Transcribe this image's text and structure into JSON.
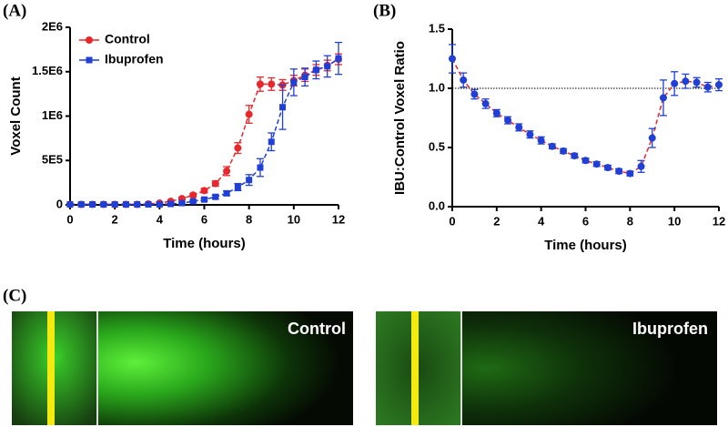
{
  "chart_data": [
    {
      "type": "line",
      "panel_label": "(A)",
      "x_label": "Time (hours)",
      "y_label": "Voxel Count",
      "x": [
        0,
        0.5,
        1,
        1.5,
        2,
        2.5,
        3,
        3.5,
        4,
        4.5,
        5,
        5.5,
        6,
        6.5,
        7,
        7.5,
        8,
        8.5,
        9,
        9.5,
        10,
        10.5,
        11,
        11.5,
        12
      ],
      "xlim": [
        0,
        12
      ],
      "xticks": [
        0,
        2,
        4,
        6,
        8,
        10,
        12
      ],
      "ylim": [
        0,
        2000000
      ],
      "yticks": [
        0,
        {
          "value": 500000,
          "label": "5E5"
        },
        {
          "value": 1000000,
          "label": "1E6"
        },
        {
          "value": 1500000,
          "label": "1.5E6"
        },
        {
          "value": 2000000,
          "label": "2E6"
        }
      ],
      "legend": "top-left",
      "series": [
        {
          "name": "Control",
          "color": "#e8262b",
          "marker": "circle",
          "values": [
            5000,
            5000,
            5000,
            5000,
            5000,
            5000,
            5000,
            10000,
            20000,
            40000,
            70000,
            110000,
            160000,
            240000,
            380000,
            640000,
            1020000,
            1360000,
            1360000,
            1350000,
            1400000,
            1460000,
            1520000,
            1570000,
            1640000
          ],
          "errors": [
            5000,
            5000,
            5000,
            5000,
            5000,
            5000,
            5000,
            5000,
            10000,
            10000,
            15000,
            20000,
            25000,
            30000,
            50000,
            60000,
            100000,
            80000,
            70000,
            60000,
            60000,
            70000,
            60000,
            60000,
            60000
          ]
        },
        {
          "name": "Ibuprofen",
          "color": "#1f3fd6",
          "marker": "square",
          "values": [
            5000,
            5000,
            5000,
            5000,
            5000,
            5000,
            5000,
            5000,
            5000,
            10000,
            20000,
            40000,
            60000,
            90000,
            130000,
            200000,
            280000,
            420000,
            710000,
            1100000,
            1380000,
            1440000,
            1520000,
            1560000,
            1650000
          ],
          "errors": [
            5000,
            5000,
            5000,
            5000,
            5000,
            5000,
            5000,
            5000,
            5000,
            5000,
            10000,
            10000,
            15000,
            20000,
            25000,
            40000,
            60000,
            100000,
            100000,
            250000,
            150000,
            100000,
            100000,
            120000,
            180000
          ]
        }
      ]
    },
    {
      "type": "line",
      "panel_label": "(B)",
      "x_label": "Time (hours)",
      "y_label": "IBU:Control Voxel Ratio",
      "x": [
        0,
        0.5,
        1,
        1.5,
        2,
        2.5,
        3,
        3.5,
        4,
        4.5,
        5,
        5.5,
        6,
        6.5,
        7,
        7.5,
        8,
        8.5,
        9,
        9.5,
        10,
        10.5,
        11,
        11.5,
        12
      ],
      "xlim": [
        0,
        12
      ],
      "xticks": [
        0,
        2,
        4,
        6,
        8,
        10,
        12
      ],
      "ylim": [
        0,
        1.5
      ],
      "yticks": [
        {
          "value": 0,
          "label": "0.0"
        },
        {
          "value": 0.5,
          "label": "0.5"
        },
        {
          "value": 1,
          "label": "1.0"
        },
        {
          "value": 1.5,
          "label": "1.5"
        }
      ],
      "reference_line": 1,
      "series": [
        {
          "color": "#1f3fd6",
          "line_color": "#e8262b",
          "marker": "circle",
          "values": [
            1.25,
            1.07,
            0.95,
            0.87,
            0.79,
            0.73,
            0.67,
            0.61,
            0.56,
            0.51,
            0.47,
            0.43,
            0.39,
            0.36,
            0.33,
            0.3,
            0.28,
            0.34,
            0.58,
            0.92,
            1.04,
            1.06,
            1.05,
            1.01,
            1.03
          ],
          "errors": [
            0.12,
            0.06,
            0.04,
            0.04,
            0.03,
            0.03,
            0.03,
            0.03,
            0.03,
            0.02,
            0.02,
            0.02,
            0.02,
            0.02,
            0.02,
            0.02,
            0.02,
            0.05,
            0.08,
            0.15,
            0.1,
            0.06,
            0.04,
            0.04,
            0.05
          ]
        }
      ]
    }
  ],
  "panel_c": {
    "panel_label": "(C)",
    "images": [
      {
        "label": "Control"
      },
      {
        "label": "Ibuprofen"
      }
    ]
  }
}
